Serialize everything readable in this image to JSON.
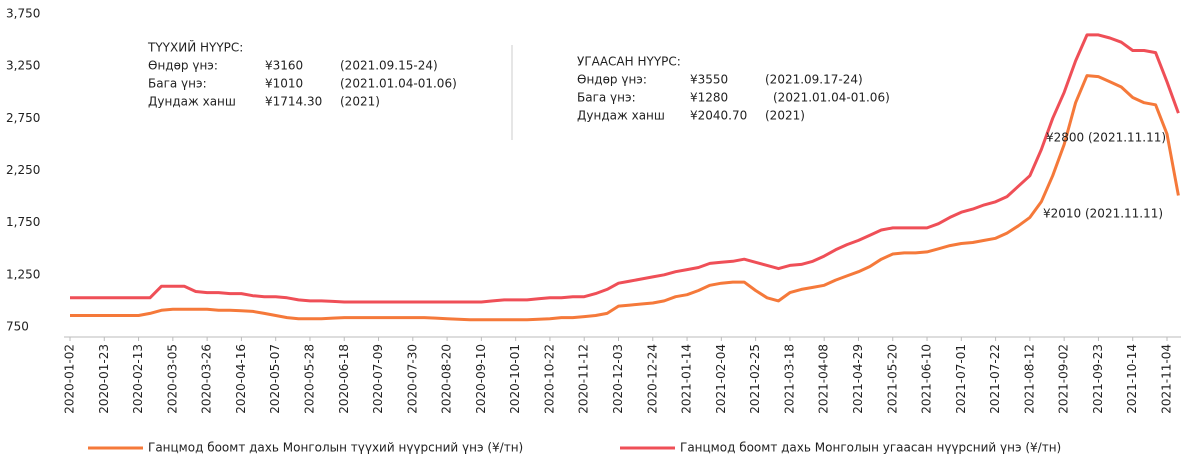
{
  "chart_data": {
    "type": "line",
    "categories": [
      "2020-01-02",
      null,
      null,
      "2020-01-23",
      null,
      null,
      "2020-02-13",
      null,
      null,
      "2020-03-05",
      null,
      null,
      "2020-03-26",
      null,
      null,
      "2020-04-16",
      null,
      null,
      "2020-05-07",
      null,
      null,
      "2020-05-28",
      null,
      null,
      "2020-06-18",
      null,
      null,
      "2020-07-09",
      null,
      null,
      "2020-07-30",
      null,
      null,
      "2020-08-20",
      null,
      null,
      "2020-09-10",
      null,
      null,
      "2020-10-01",
      null,
      null,
      "2020-10-22",
      null,
      null,
      "2020-11-12",
      null,
      null,
      "2020-12-03",
      null,
      null,
      "2020-12-24",
      null,
      null,
      "2021-01-14",
      null,
      null,
      "2021-02-04",
      null,
      null,
      "2021-02-25",
      null,
      null,
      "2021-03-18",
      null,
      null,
      "2021-04-08",
      null,
      null,
      "2021-04-29",
      null,
      null,
      "2021-05-20",
      null,
      null,
      "2021-06-10",
      null,
      null,
      "2021-07-01",
      null,
      null,
      "2021-07-22",
      null,
      null,
      "2021-08-12",
      null,
      null,
      "2021-09-02",
      null,
      null,
      "2021-09-23",
      null,
      null,
      "2021-10-14",
      null,
      null,
      "2021-11-04",
      null
    ],
    "series": [
      {
        "name": "Ганцмод боомт дахь Монголын түүхий нүүрсний үнэ (¥/тн)",
        "color": "#f5793a",
        "values": [
          860,
          860,
          860,
          860,
          860,
          860,
          860,
          880,
          910,
          920,
          920,
          920,
          920,
          910,
          910,
          905,
          900,
          880,
          860,
          840,
          830,
          830,
          830,
          835,
          840,
          840,
          840,
          840,
          840,
          840,
          840,
          840,
          835,
          830,
          825,
          820,
          820,
          820,
          820,
          820,
          820,
          825,
          830,
          840,
          840,
          850,
          860,
          880,
          950,
          960,
          970,
          980,
          1000,
          1040,
          1060,
          1100,
          1150,
          1170,
          1180,
          1180,
          1100,
          1030,
          1000,
          1080,
          1110,
          1130,
          1150,
          1200,
          1240,
          1280,
          1330,
          1400,
          1450,
          1460,
          1460,
          1470,
          1500,
          1530,
          1550,
          1560,
          1580,
          1600,
          1650,
          1720,
          1800,
          1950,
          2200,
          2500,
          2900,
          3160,
          3150,
          3100,
          3050,
          2950,
          2900,
          2880,
          2600,
          2010
        ]
      },
      {
        "name": "Ганцмод боомт дахь Монголын угаасан нүүрсний үнэ (¥/тн)",
        "color": "#ef4f57",
        "values": [
          1030,
          1030,
          1030,
          1030,
          1030,
          1030,
          1030,
          1030,
          1140,
          1140,
          1140,
          1090,
          1080,
          1080,
          1070,
          1070,
          1050,
          1040,
          1040,
          1030,
          1010,
          1000,
          1000,
          995,
          990,
          990,
          990,
          990,
          990,
          990,
          990,
          990,
          990,
          990,
          990,
          990,
          990,
          1000,
          1010,
          1010,
          1010,
          1020,
          1030,
          1030,
          1040,
          1040,
          1070,
          1110,
          1170,
          1190,
          1210,
          1230,
          1250,
          1280,
          1300,
          1320,
          1360,
          1370,
          1380,
          1400,
          1370,
          1340,
          1310,
          1340,
          1350,
          1380,
          1430,
          1490,
          1540,
          1580,
          1630,
          1680,
          1700,
          1700,
          1700,
          1700,
          1740,
          1800,
          1850,
          1880,
          1920,
          1950,
          2000,
          2100,
          2200,
          2450,
          2750,
          3000,
          3300,
          3550,
          3550,
          3520,
          3480,
          3400,
          3400,
          3380,
          3100,
          2800
        ]
      }
    ],
    "ylim": [
      750,
      3750
    ],
    "yticks": [
      {
        "value": 750,
        "label": "750"
      },
      {
        "value": 1250,
        "label": "1,250"
      },
      {
        "value": 1750,
        "label": "1,750"
      },
      {
        "value": 2250,
        "label": "2,250"
      },
      {
        "value": 2750,
        "label": "2,750"
      },
      {
        "value": 3250,
        "label": "3,250"
      },
      {
        "value": 3750,
        "label": "3,750"
      }
    ],
    "grid": false,
    "notes": [
      {
        "title": "ТҮҮХИЙ НҮҮРС:",
        "rows": [
          [
            "Өндөр үнэ:",
            "¥3160",
            "(2021.09.15-24)"
          ],
          [
            "Бага үнэ:",
            "¥1010",
            "(2021.01.04-01.06)"
          ],
          [
            "Дундаж ханш",
            "¥1714.30",
            "(2021)"
          ]
        ]
      },
      {
        "title": "УГААСАН НҮҮРС:",
        "rows": [
          [
            "Өндөр үнэ:",
            "¥3550",
            "(2021.09.17-24)"
          ],
          [
            "Бага үнэ:",
            "¥1280",
            "(2021.01.04-01.06)"
          ],
          [
            "Дундаж ханш",
            "¥2040.70",
            "(2021)"
          ]
        ]
      }
    ],
    "annotations": [
      "¥2800 (2021.11.11)",
      "¥2010 (2021.11.11)"
    ]
  }
}
